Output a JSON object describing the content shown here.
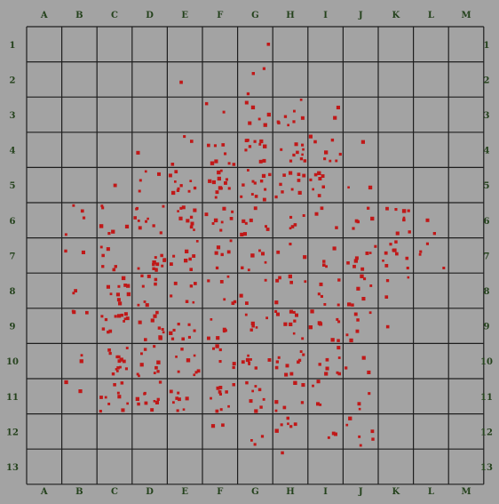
{
  "grid": {
    "columns": [
      "A",
      "B",
      "C",
      "D",
      "E",
      "F",
      "G",
      "H",
      "I",
      "J",
      "K",
      "L",
      "M"
    ],
    "rows": [
      "1",
      "2",
      "3",
      "4",
      "5",
      "6",
      "7",
      "8",
      "9",
      "10",
      "11",
      "12",
      "13"
    ],
    "background_color": "#a3a3a3",
    "line_color": "#1e1e1e",
    "label_color": "#24421c"
  },
  "markers": {
    "color": "#c01818",
    "cells": [
      {
        "cell": "G1",
        "count": 1
      },
      {
        "cell": "E2",
        "count": 1
      },
      {
        "cell": "G2",
        "count": 3
      },
      {
        "cell": "F3",
        "count": 2
      },
      {
        "cell": "G3",
        "count": 6
      },
      {
        "cell": "H3",
        "count": 8
      },
      {
        "cell": "I3",
        "count": 2
      },
      {
        "cell": "D4",
        "count": 1
      },
      {
        "cell": "E4",
        "count": 3
      },
      {
        "cell": "F4",
        "count": 8
      },
      {
        "cell": "G4",
        "count": 10
      },
      {
        "cell": "H4",
        "count": 10
      },
      {
        "cell": "I4",
        "count": 8
      },
      {
        "cell": "J4",
        "count": 1
      },
      {
        "cell": "C5",
        "count": 1
      },
      {
        "cell": "D5",
        "count": 4
      },
      {
        "cell": "E5",
        "count": 10
      },
      {
        "cell": "F5",
        "count": 12
      },
      {
        "cell": "G5",
        "count": 12
      },
      {
        "cell": "H5",
        "count": 10
      },
      {
        "cell": "I5",
        "count": 8
      },
      {
        "cell": "J5",
        "count": 2
      },
      {
        "cell": "B6",
        "count": 4
      },
      {
        "cell": "C6",
        "count": 6
      },
      {
        "cell": "D6",
        "count": 10
      },
      {
        "cell": "E6",
        "count": 10
      },
      {
        "cell": "F6",
        "count": 8
      },
      {
        "cell": "G6",
        "count": 8
      },
      {
        "cell": "H6",
        "count": 5
      },
      {
        "cell": "I6",
        "count": 3
      },
      {
        "cell": "J6",
        "count": 5
      },
      {
        "cell": "K6",
        "count": 8
      },
      {
        "cell": "L6",
        "count": 2
      },
      {
        "cell": "B7",
        "count": 2
      },
      {
        "cell": "C7",
        "count": 6
      },
      {
        "cell": "D7",
        "count": 12
      },
      {
        "cell": "E7",
        "count": 8
      },
      {
        "cell": "F7",
        "count": 6
      },
      {
        "cell": "G7",
        "count": 6
      },
      {
        "cell": "H7",
        "count": 3
      },
      {
        "cell": "I7",
        "count": 4
      },
      {
        "cell": "J7",
        "count": 8
      },
      {
        "cell": "K7",
        "count": 10
      },
      {
        "cell": "L7",
        "count": 4
      },
      {
        "cell": "B8",
        "count": 2
      },
      {
        "cell": "C8",
        "count": 10
      },
      {
        "cell": "D8",
        "count": 8
      },
      {
        "cell": "E8",
        "count": 6
      },
      {
        "cell": "F8",
        "count": 6
      },
      {
        "cell": "G8",
        "count": 3
      },
      {
        "cell": "H8",
        "count": 6
      },
      {
        "cell": "I8",
        "count": 6
      },
      {
        "cell": "J8",
        "count": 8
      },
      {
        "cell": "K8",
        "count": 3
      },
      {
        "cell": "B9",
        "count": 3
      },
      {
        "cell": "C9",
        "count": 12
      },
      {
        "cell": "D9",
        "count": 10
      },
      {
        "cell": "E9",
        "count": 8
      },
      {
        "cell": "F9",
        "count": 6
      },
      {
        "cell": "G9",
        "count": 6
      },
      {
        "cell": "H9",
        "count": 10
      },
      {
        "cell": "I9",
        "count": 8
      },
      {
        "cell": "J9",
        "count": 6
      },
      {
        "cell": "K9",
        "count": 1
      },
      {
        "cell": "B10",
        "count": 2
      },
      {
        "cell": "C10",
        "count": 14
      },
      {
        "cell": "D10",
        "count": 10
      },
      {
        "cell": "E10",
        "count": 8
      },
      {
        "cell": "F10",
        "count": 6
      },
      {
        "cell": "G10",
        "count": 8
      },
      {
        "cell": "H10",
        "count": 10
      },
      {
        "cell": "I10",
        "count": 8
      },
      {
        "cell": "J10",
        "count": 3
      },
      {
        "cell": "B11",
        "count": 2
      },
      {
        "cell": "C11",
        "count": 10
      },
      {
        "cell": "D11",
        "count": 10
      },
      {
        "cell": "E11",
        "count": 8
      },
      {
        "cell": "F11",
        "count": 10
      },
      {
        "cell": "G11",
        "count": 8
      },
      {
        "cell": "H11",
        "count": 6
      },
      {
        "cell": "I11",
        "count": 4
      },
      {
        "cell": "J11",
        "count": 3
      },
      {
        "cell": "F12",
        "count": 2
      },
      {
        "cell": "G12",
        "count": 3
      },
      {
        "cell": "H12",
        "count": 6
      },
      {
        "cell": "I12",
        "count": 3
      },
      {
        "cell": "J12",
        "count": 6
      },
      {
        "cell": "H13",
        "count": 1
      }
    ]
  }
}
